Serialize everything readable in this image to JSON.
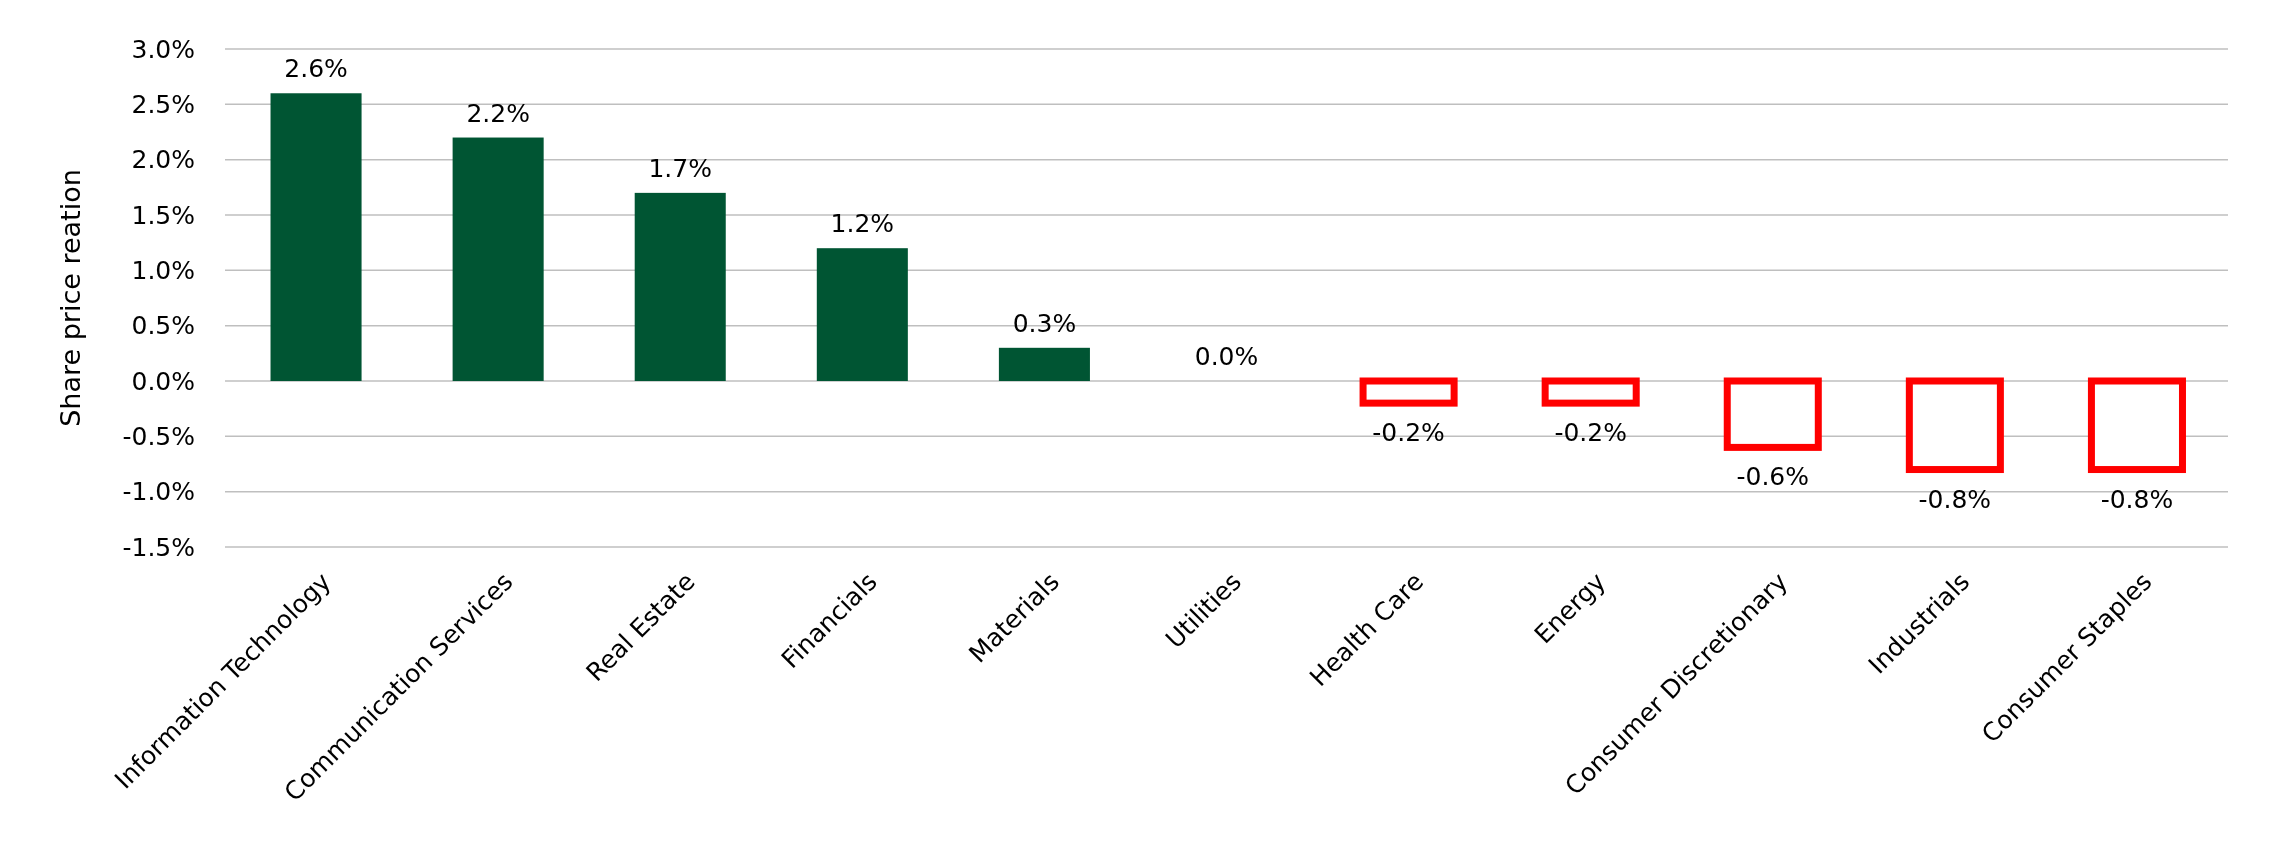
{
  "chart_data": {
    "type": "bar",
    "ylabel": "Share price reation",
    "categories": [
      "Information Technology",
      "Communication Services",
      "Real Estate",
      "Financials",
      "Materials",
      "Utilities",
      "Health Care",
      "Energy",
      "Consumer Discretionary",
      "Industrials",
      "Consumer Staples"
    ],
    "values": [
      2.6,
      2.2,
      1.7,
      1.2,
      0.3,
      0.0,
      -0.2,
      -0.2,
      -0.6,
      -0.8,
      -0.8
    ],
    "value_labels": [
      "2.6%",
      "2.2%",
      "1.7%",
      "1.2%",
      "0.3%",
      "0.0%",
      "-0.2%",
      "-0.2%",
      "-0.6%",
      "-0.8%",
      "-0.8%"
    ],
    "colors": [
      "#005533",
      "#005533",
      "#005533",
      "#005533",
      "#005533",
      "#005533",
      "#ff0000",
      "#ff0000",
      "#ff0000",
      "#ff0000",
      "#ff0000"
    ],
    "ylim": [
      -1.5,
      3.0
    ],
    "yticks": [
      {
        "value": -1.5,
        "label": "-1.5%"
      },
      {
        "value": -1.0,
        "label": "-1.0%"
      },
      {
        "value": -0.5,
        "label": "-0.5%"
      },
      {
        "value": 0,
        "label": "0.0%"
      },
      {
        "value": 0.5,
        "label": "0.5%"
      },
      {
        "value": 1.0,
        "label": "1.0%"
      },
      {
        "value": 1.5,
        "label": "1.5%"
      },
      {
        "value": 2.0,
        "label": "2.0%"
      },
      {
        "value": 2.5,
        "label": "2.5%"
      },
      {
        "value": 3.0,
        "label": "3.0%"
      }
    ],
    "grid": "y"
  }
}
